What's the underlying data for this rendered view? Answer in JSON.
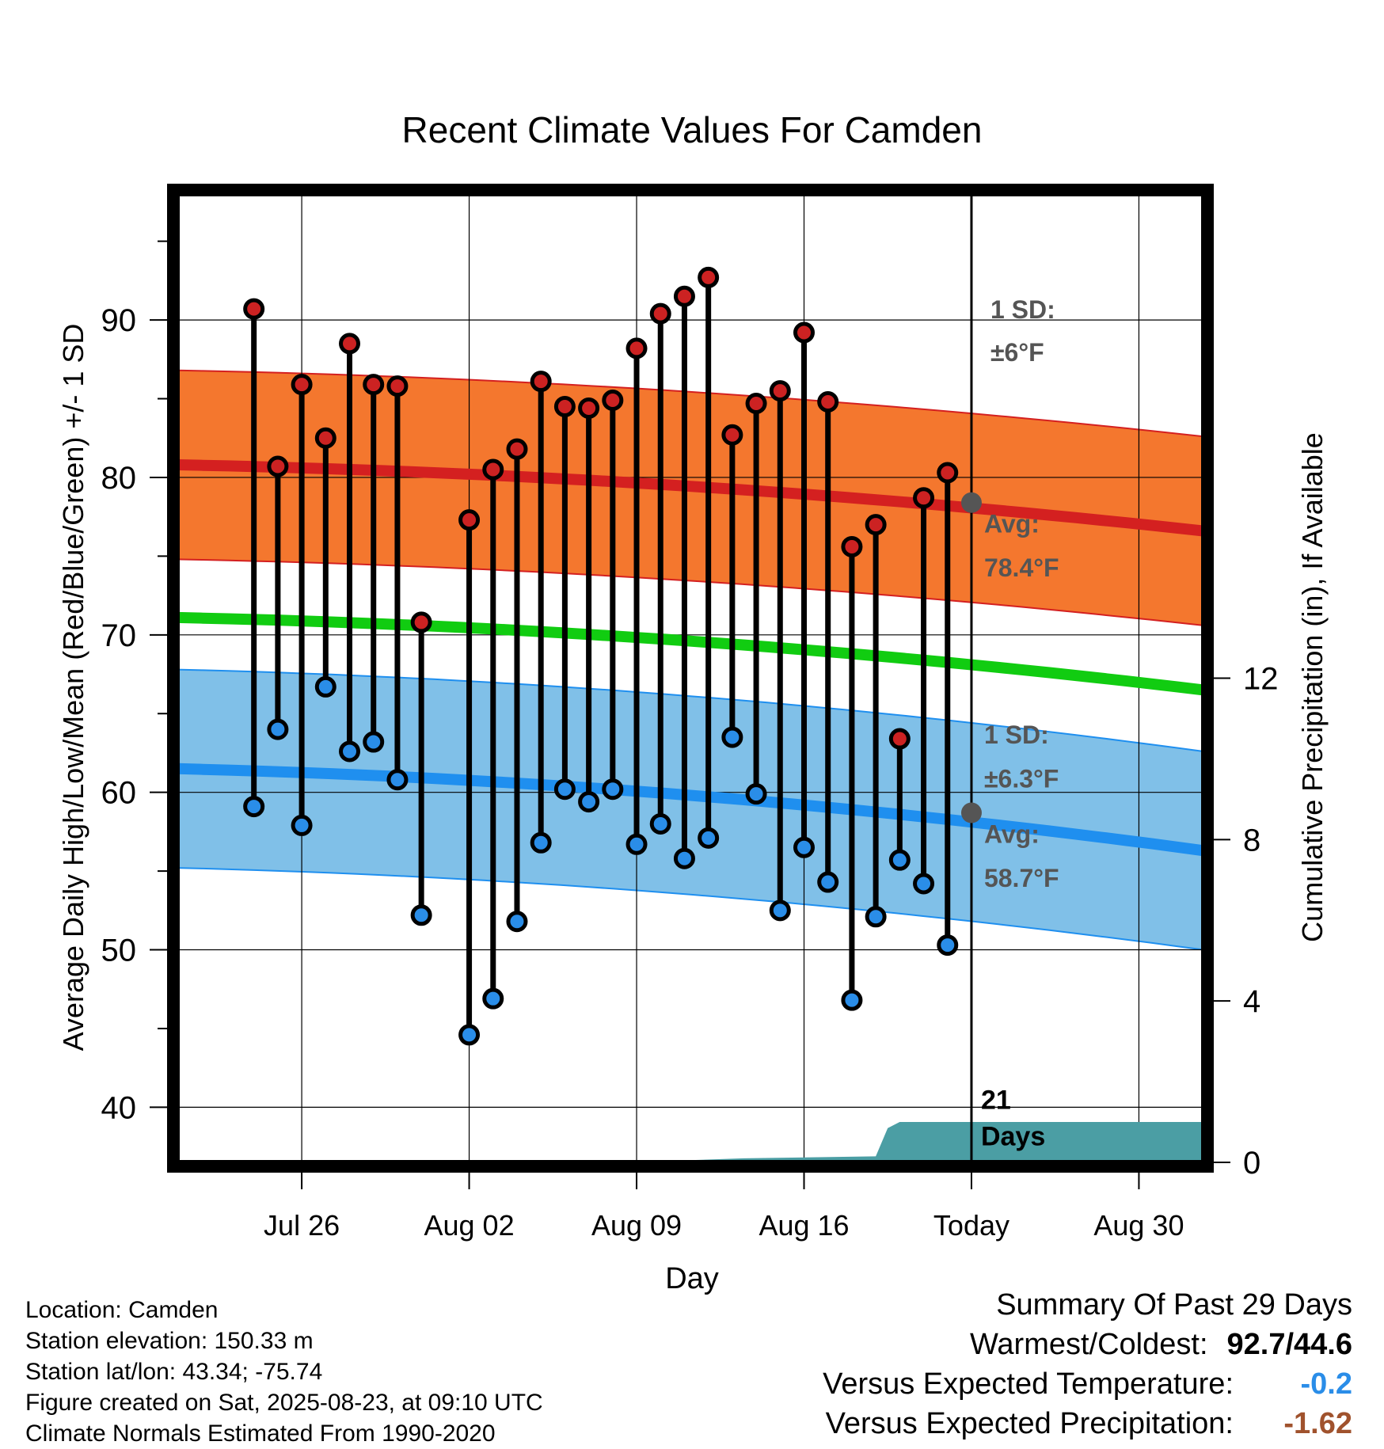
{
  "chart_data": {
    "type": "line",
    "title": "Recent Climate Values For Camden",
    "xlabel": "Day",
    "ylabel": "Average Daily High/Low/Mean (Red/Blue/Green) +/- 1 SD",
    "y2label": "Cumulative Precipitation (in), If Available",
    "ylim": [
      36.5,
      98
    ],
    "y_ticks": [
      40,
      50,
      60,
      70,
      80,
      90
    ],
    "y2lim": [
      0,
      24
    ],
    "y2_ticks": [
      0,
      4,
      8,
      12
    ],
    "x_range_days": [
      -33.2,
      9.7
    ],
    "x_ticks": [
      {
        "day": -28,
        "label": "Jul 26"
      },
      {
        "day": -21,
        "label": "Aug 02"
      },
      {
        "day": -14,
        "label": "Aug 09"
      },
      {
        "day": -7,
        "label": "Aug 16"
      },
      {
        "day": 0,
        "label": "Today"
      },
      {
        "day": 7,
        "label": "Aug 30"
      }
    ],
    "today_day": 0,
    "grid": true,
    "days": [
      -30,
      -29,
      -28,
      -27,
      -26,
      -25,
      -24,
      -23,
      -22,
      -21,
      -20,
      -19,
      -18,
      -17,
      -16,
      -15,
      -14,
      -13,
      -12,
      -11,
      -10,
      -9,
      -8,
      -7,
      -6,
      -5,
      -4,
      -3,
      -2,
      -1
    ],
    "series": [
      {
        "name": "High",
        "color": "#cc2222",
        "values": [
          90.7,
          80.7,
          85.9,
          82.5,
          88.5,
          85.9,
          85.8,
          70.8,
          null,
          77.3,
          80.5,
          81.8,
          86.1,
          84.5,
          84.4,
          84.9,
          88.2,
          90.4,
          91.5,
          92.7,
          82.7,
          84.7,
          85.5,
          89.2,
          84.8,
          75.6,
          77.0,
          63.4,
          78.7,
          80.3
        ]
      },
      {
        "name": "Low",
        "color": "#2a8de8",
        "values": [
          59.1,
          64.0,
          57.9,
          66.7,
          62.6,
          63.2,
          60.8,
          52.2,
          null,
          44.6,
          46.9,
          51.8,
          56.8,
          60.2,
          59.4,
          60.2,
          56.7,
          58.0,
          55.8,
          57.1,
          63.5,
          59.9,
          52.5,
          56.5,
          54.3,
          46.8,
          52.1,
          55.7,
          54.2,
          50.3
        ]
      }
    ],
    "normals": {
      "high": {
        "start": 80.8,
        "end": 76.6,
        "sd_label": "1 SD:",
        "sd_value": "±6°F",
        "avg_label": "Avg:",
        "avg_value": "78.4°F",
        "avg_today": 78.4,
        "sd": 6,
        "band_color": "#f4772e",
        "line_color": "#d42020"
      },
      "low": {
        "start": 61.5,
        "end": 56.3,
        "sd_label": "1 SD:",
        "sd_value": "±6.3°F",
        "avg_label": "Avg:",
        "avg_value": "58.7°F",
        "avg_today": 58.7,
        "sd": 6.3,
        "band_color": "#80c0e8",
        "line_color": "#1f8fef"
      },
      "mean": {
        "start": 71.1,
        "end": 66.5,
        "line_color": "#11cc11"
      }
    },
    "precip": {
      "color": "#4b9ea4",
      "points": [
        [
          -14.5,
          0
        ],
        [
          -9.5,
          0.1
        ],
        [
          -4,
          0.15
        ],
        [
          -3.5,
          0.85
        ],
        [
          -3,
          1.0
        ],
        [
          9.7,
          1.0
        ]
      ]
    },
    "today_annotation": "21\nDays"
  },
  "info": {
    "location": "Location: Camden",
    "elevation": "Station elevation: 150.33 m",
    "latlon": "Station lat/lon: 43.34; -75.74",
    "created": "Figure created on Sat, 2025-08-23, at 09:10 UTC",
    "normals": "Climate Normals Estimated From 1990-2020"
  },
  "summary": {
    "title": "Summary Of Past 29 Days",
    "warm_cold_label": "Warmest/Coldest:",
    "warm_cold_value": "92.7/44.6",
    "temp_label": "Versus Expected Temperature:",
    "temp_value": "-0.2",
    "temp_color": "#2a8de8",
    "precip_label": "Versus Expected Precipitation:",
    "precip_value": "-1.62",
    "precip_color": "#a0522d"
  }
}
